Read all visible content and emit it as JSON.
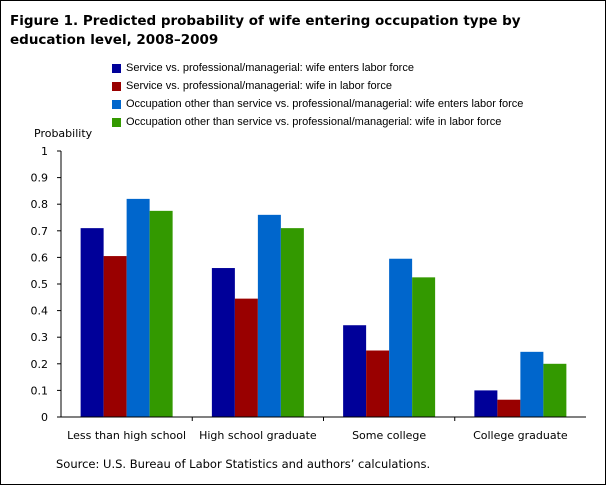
{
  "title": "Figure 1. Predicted probability of wife entering occupation type by education level, 2008–2009",
  "source": "Source: U.S. Bureau of Labor Statistics and authors’ calculations.",
  "chart_data": {
    "type": "bar",
    "title": "Figure 1. Predicted probability of wife entering occupation type by education level, 2008–2009",
    "ylabel": "Probability",
    "xlabel": "",
    "ylim": [
      0,
      1
    ],
    "yticks": [
      0,
      0.1,
      0.2,
      0.3,
      0.4,
      0.5,
      0.6,
      0.7,
      0.8,
      0.9,
      1
    ],
    "ytick_labels": [
      "0",
      "0.1",
      "0.2",
      "0.3",
      "0.4",
      "0.5",
      "0.6",
      "0.7",
      "0.8",
      "0.9",
      "1"
    ],
    "grid": false,
    "legend_position": "top",
    "categories": [
      "Less than high school",
      "High school graduate",
      "Some college",
      "College graduate"
    ],
    "series": [
      {
        "name": "Service vs. professional/managerial: wife enters labor force",
        "color": "#000099",
        "values": [
          0.71,
          0.56,
          0.345,
          0.1
        ]
      },
      {
        "name": "Service vs. professional/managerial: wife in labor force",
        "color": "#990000",
        "values": [
          0.605,
          0.445,
          0.25,
          0.065
        ]
      },
      {
        "name": "Occupation other than service vs. professional/managerial: wife enters labor force",
        "color": "#0066CC",
        "values": [
          0.82,
          0.76,
          0.595,
          0.245
        ]
      },
      {
        "name": "Occupation other than service vs. professional/managerial: wife in labor force",
        "color": "#339900",
        "values": [
          0.775,
          0.71,
          0.525,
          0.2
        ]
      }
    ]
  }
}
